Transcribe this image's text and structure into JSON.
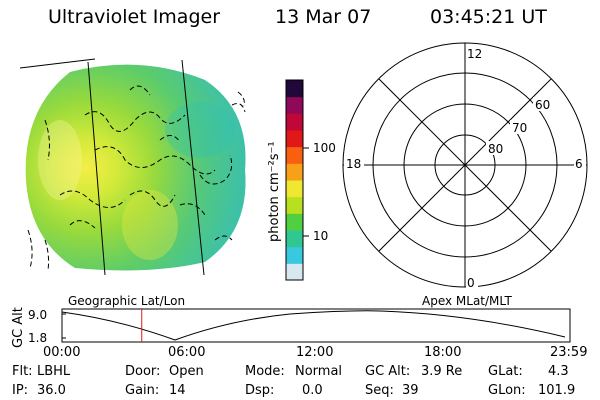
{
  "header": {
    "instrument": "Ultraviolet Imager",
    "date": "13 Mar 07",
    "time": "03:45:21 UT"
  },
  "colorbar": {
    "unit_label": "photon cm⁻²s⁻¹",
    "tick_labels": [
      "100",
      "10"
    ],
    "colors": [
      "#d8e8f0",
      "#38c8e0",
      "#30c890",
      "#50d040",
      "#b8e020",
      "#f0e830",
      "#f8a018",
      "#f86010",
      "#e01818",
      "#c00838",
      "#900858",
      "#200838"
    ]
  },
  "polar_plot": {
    "clock_labels": [
      "12",
      "18",
      "6",
      "0"
    ],
    "lat_labels": [
      "60",
      "70",
      "80"
    ]
  },
  "labels": {
    "left_panel": "Geographic Lat/Lon",
    "right_panel": "Apex MLat/MLT"
  },
  "altitude_plot": {
    "axis_title": "GC Alt",
    "y_ticks": [
      "9.0",
      "1.8"
    ],
    "time_ticks": [
      "00:00",
      "06:00",
      "12:00",
      "18:00",
      "23:59"
    ],
    "current_time_fraction": 0.157
  },
  "info": {
    "flt_label": "Flt:",
    "flt_value": "LBHL",
    "ip_label": "IP:",
    "ip_value": "36.0",
    "door_label": "Door:",
    "door_value": "Open",
    "gain_label": "Gain:",
    "gain_value": "14",
    "mode_label": "Mode:",
    "mode_value": "Normal",
    "dsp_label": "Dsp:",
    "dsp_value": "0.0",
    "gcalt_label": "GC Alt:",
    "gcalt_value": "3.9 Re",
    "seq_label": "Seq:",
    "seq_value": "39",
    "glat_label": "GLat:",
    "glat_value": "4.3",
    "glon_label": "GLon:",
    "glon_value": "101.9"
  }
}
